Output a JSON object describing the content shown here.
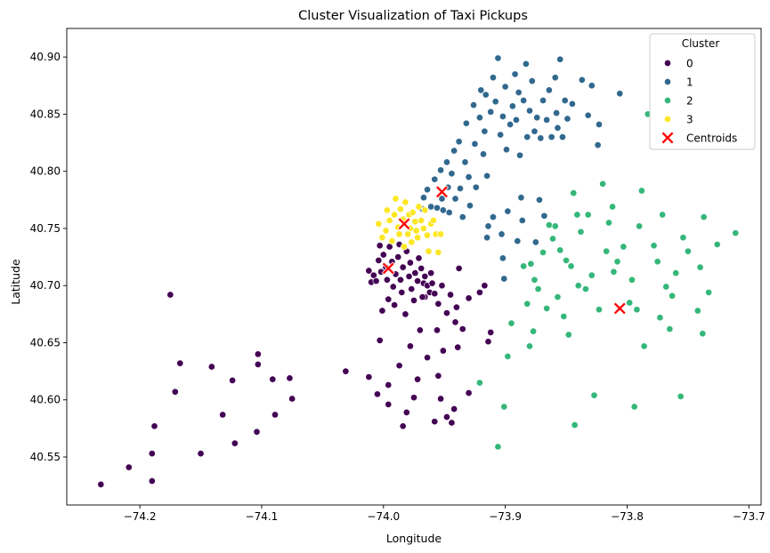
{
  "chart_data": {
    "type": "scatter",
    "title": "Cluster Visualization of Taxi Pickups",
    "xlabel": "Longitude",
    "ylabel": "Latitude",
    "xlim": [
      -74.26,
      -73.69
    ],
    "ylim": [
      40.508,
      40.925
    ],
    "xticks": [
      -74.2,
      -74.1,
      -74.0,
      -73.9,
      -73.8,
      -73.7
    ],
    "xtick_labels": [
      "−74.2",
      "−74.1",
      "−74.0",
      "−73.9",
      "−73.8",
      "−73.7"
    ],
    "yticks": [
      40.55,
      40.6,
      40.65,
      40.7,
      40.75,
      40.8,
      40.85,
      40.9
    ],
    "ytick_labels": [
      "40.55",
      "40.60",
      "40.65",
      "40.70",
      "40.75",
      "40.80",
      "40.85",
      "40.90"
    ],
    "grid": false,
    "legend": {
      "title": "Cluster",
      "position": "top-right"
    },
    "series": [
      {
        "name": "0",
        "color": "#440154",
        "marker": "circle",
        "points": [
          [
            -74.232,
            40.526
          ],
          [
            -74.209,
            40.541
          ],
          [
            -74.19,
            40.529
          ],
          [
            -74.19,
            40.553
          ],
          [
            -74.188,
            40.577
          ],
          [
            -74.175,
            40.692
          ],
          [
            -74.171,
            40.607
          ],
          [
            -74.167,
            40.632
          ],
          [
            -74.15,
            40.553
          ],
          [
            -74.141,
            40.629
          ],
          [
            -74.132,
            40.587
          ],
          [
            -74.124,
            40.617
          ],
          [
            -74.122,
            40.562
          ],
          [
            -74.104,
            40.572
          ],
          [
            -74.103,
            40.631
          ],
          [
            -74.103,
            40.64
          ],
          [
            -74.091,
            40.618
          ],
          [
            -74.089,
            40.587
          ],
          [
            -74.077,
            40.619
          ],
          [
            -74.075,
            40.601
          ],
          [
            -74.031,
            40.625
          ],
          [
            -74.012,
            40.62
          ],
          [
            -74.005,
            40.605
          ],
          [
            -74.003,
            40.652
          ],
          [
            -74.001,
            40.678
          ],
          [
            -73.996,
            40.596
          ],
          [
            -73.996,
            40.613
          ],
          [
            -73.991,
            40.683
          ],
          [
            -73.987,
            40.63
          ],
          [
            -73.984,
            40.577
          ],
          [
            -73.981,
            40.589
          ],
          [
            -73.978,
            40.647
          ],
          [
            -73.975,
            40.602
          ],
          [
            -73.972,
            40.618
          ],
          [
            -73.97,
            40.661
          ],
          [
            -73.966,
            40.69
          ],
          [
            -73.964,
            40.637
          ],
          [
            -73.961,
            40.711
          ],
          [
            -73.958,
            40.581
          ],
          [
            -73.956,
            40.661
          ],
          [
            -73.955,
            40.621
          ],
          [
            -73.953,
            40.601
          ],
          [
            -73.951,
            40.643
          ],
          [
            -73.948,
            40.585
          ],
          [
            -73.944,
            40.58
          ],
          [
            -73.942,
            40.592
          ],
          [
            -73.94,
            40.681
          ],
          [
            -73.939,
            40.646
          ],
          [
            -73.938,
            40.715
          ],
          [
            -73.935,
            40.662
          ],
          [
            -73.93,
            40.606
          ],
          [
            -73.93,
            40.689
          ],
          [
            -73.921,
            40.694
          ],
          [
            -73.917,
            40.7
          ],
          [
            -73.914,
            40.651
          ],
          [
            -73.912,
            40.659
          ],
          [
            -74.012,
            40.713
          ],
          [
            -74.01,
            40.703
          ],
          [
            -74.008,
            40.709
          ],
          [
            -74.006,
            40.704
          ],
          [
            -74.004,
            40.722
          ],
          [
            -74.003,
            40.735
          ],
          [
            -74.002,
            40.712
          ],
          [
            -74.0,
            40.727
          ],
          [
            -73.998,
            40.716
          ],
          [
            -73.997,
            40.705
          ],
          [
            -73.996,
            40.688
          ],
          [
            -73.995,
            40.734
          ],
          [
            -73.993,
            40.721
          ],
          [
            -73.992,
            40.699
          ],
          [
            -73.99,
            40.71
          ],
          [
            -73.988,
            40.725
          ],
          [
            -73.987,
            40.736
          ],
          [
            -73.986,
            40.705
          ],
          [
            -73.985,
            40.694
          ],
          [
            -73.984,
            40.716
          ],
          [
            -73.982,
            40.675
          ],
          [
            -73.981,
            40.73
          ],
          [
            -73.979,
            40.708
          ],
          [
            -73.978,
            40.72
          ],
          [
            -73.977,
            40.697
          ],
          [
            -73.975,
            40.687
          ],
          [
            -73.974,
            40.711
          ],
          [
            -73.972,
            40.704
          ],
          [
            -73.971,
            40.724
          ],
          [
            -73.969,
            40.715
          ],
          [
            -73.968,
            40.69
          ],
          [
            -73.967,
            40.702
          ],
          [
            -73.966,
            40.708
          ],
          [
            -73.964,
            40.7
          ],
          [
            -73.962,
            40.694
          ],
          [
            -73.96,
            40.702
          ],
          [
            -73.958,
            40.693
          ],
          [
            -73.955,
            40.684
          ],
          [
            -73.952,
            40.7
          ],
          [
            -73.948,
            40.676
          ],
          [
            -73.945,
            40.692
          ],
          [
            -73.941,
            40.668
          ]
        ]
      },
      {
        "name": "1",
        "color": "#31688e",
        "marker": "circle",
        "points": [
          [
            -73.968,
            40.767
          ],
          [
            -73.967,
            40.777
          ],
          [
            -73.964,
            40.784
          ],
          [
            -73.961,
            40.769
          ],
          [
            -73.958,
            40.793
          ],
          [
            -73.956,
            40.768
          ],
          [
            -73.953,
            40.801
          ],
          [
            -73.952,
            40.776
          ],
          [
            -73.951,
            40.766
          ],
          [
            -73.948,
            40.808
          ],
          [
            -73.947,
            40.786
          ],
          [
            -73.946,
            40.764
          ],
          [
            -73.944,
            40.798
          ],
          [
            -73.942,
            40.818
          ],
          [
            -73.941,
            40.776
          ],
          [
            -73.938,
            40.826
          ],
          [
            -73.937,
            40.785
          ],
          [
            -73.935,
            40.76
          ],
          [
            -73.933,
            40.808
          ],
          [
            -73.932,
            40.842
          ],
          [
            -73.93,
            40.795
          ],
          [
            -73.929,
            40.77
          ],
          [
            -73.926,
            40.858
          ],
          [
            -73.925,
            40.824
          ],
          [
            -73.924,
            40.786
          ],
          [
            -73.921,
            40.847
          ],
          [
            -73.92,
            40.871
          ],
          [
            -73.918,
            40.815
          ],
          [
            -73.917,
            40.835
          ],
          [
            -73.916,
            40.867
          ],
          [
            -73.915,
            40.796
          ],
          [
            -73.914,
            40.752
          ],
          [
            -73.912,
            40.852
          ],
          [
            -73.91,
            40.882
          ],
          [
            -73.908,
            40.861
          ],
          [
            -73.906,
            40.899
          ],
          [
            -73.904,
            40.832
          ],
          [
            -73.903,
            40.745
          ],
          [
            -73.902,
            40.848
          ],
          [
            -73.9,
            40.874
          ],
          [
            -73.899,
            40.819
          ],
          [
            -73.898,
            40.765
          ],
          [
            -73.896,
            40.841
          ],
          [
            -73.894,
            40.857
          ],
          [
            -73.892,
            40.885
          ],
          [
            -73.891,
            40.845
          ],
          [
            -73.889,
            40.869
          ],
          [
            -73.888,
            40.814
          ],
          [
            -73.887,
            40.777
          ],
          [
            -73.886,
            40.757
          ],
          [
            -73.885,
            40.862
          ],
          [
            -73.883,
            40.894
          ],
          [
            -73.882,
            40.83
          ],
          [
            -73.88,
            40.853
          ],
          [
            -73.878,
            40.879
          ],
          [
            -73.876,
            40.835
          ],
          [
            -73.874,
            40.847
          ],
          [
            -73.872,
            40.775
          ],
          [
            -73.871,
            40.829
          ],
          [
            -73.869,
            40.862
          ],
          [
            -73.868,
            40.761
          ],
          [
            -73.866,
            40.845
          ],
          [
            -73.864,
            40.871
          ],
          [
            -73.862,
            40.83
          ],
          [
            -73.859,
            40.882
          ],
          [
            -73.858,
            40.851
          ],
          [
            -73.857,
            40.838
          ],
          [
            -73.855,
            40.898
          ],
          [
            -73.853,
            40.83
          ],
          [
            -73.851,
            40.862
          ],
          [
            -73.849,
            40.846
          ],
          [
            -73.845,
            40.859
          ],
          [
            -73.837,
            40.88
          ],
          [
            -73.832,
            40.849
          ],
          [
            -73.829,
            40.875
          ],
          [
            -73.823,
            40.841
          ],
          [
            -73.824,
            40.823
          ],
          [
            -73.806,
            40.868
          ],
          [
            -73.902,
            40.724
          ],
          [
            -73.901,
            40.706
          ],
          [
            -73.915,
            40.742
          ],
          [
            -73.91,
            40.76
          ],
          [
            -73.89,
            40.739
          ],
          [
            -73.875,
            40.738
          ]
        ]
      },
      {
        "name": "2",
        "color": "#35b779",
        "marker": "circle",
        "points": [
          [
            -73.906,
            40.559
          ],
          [
            -73.901,
            40.594
          ],
          [
            -73.898,
            40.638
          ],
          [
            -73.895,
            40.667
          ],
          [
            -73.885,
            40.717
          ],
          [
            -73.882,
            40.684
          ],
          [
            -73.88,
            40.647
          ],
          [
            -73.877,
            40.66
          ],
          [
            -73.876,
            40.705
          ],
          [
            -73.873,
            40.697
          ],
          [
            -73.869,
            40.729
          ],
          [
            -73.866,
            40.68
          ],
          [
            -73.864,
            40.753
          ],
          [
            -73.861,
            40.741
          ],
          [
            -73.859,
            40.752
          ],
          [
            -73.857,
            40.69
          ],
          [
            -73.855,
            40.731
          ],
          [
            -73.852,
            40.673
          ],
          [
            -73.85,
            40.722
          ],
          [
            -73.848,
            40.657
          ],
          [
            -73.846,
            40.717
          ],
          [
            -73.844,
            40.781
          ],
          [
            -73.843,
            40.578
          ],
          [
            -73.841,
            40.762
          ],
          [
            -73.838,
            40.747
          ],
          [
            -73.834,
            40.697
          ],
          [
            -73.832,
            40.762
          ],
          [
            -73.829,
            40.709
          ],
          [
            -73.827,
            40.604
          ],
          [
            -73.823,
            40.679
          ],
          [
            -73.82,
            40.789
          ],
          [
            -73.817,
            40.73
          ],
          [
            -73.815,
            40.755
          ],
          [
            -73.812,
            40.769
          ],
          [
            -73.811,
            40.712
          ],
          [
            -73.808,
            40.721
          ],
          [
            -73.803,
            40.734
          ],
          [
            -73.798,
            40.685
          ],
          [
            -73.796,
            40.705
          ],
          [
            -73.794,
            40.594
          ],
          [
            -73.792,
            40.679
          ],
          [
            -73.79,
            40.752
          ],
          [
            -73.788,
            40.783
          ],
          [
            -73.786,
            40.647
          ],
          [
            -73.783,
            40.85
          ],
          [
            -73.778,
            40.735
          ],
          [
            -73.775,
            40.721
          ],
          [
            -73.773,
            40.672
          ],
          [
            -73.771,
            40.762
          ],
          [
            -73.768,
            40.699
          ],
          [
            -73.765,
            40.662
          ],
          [
            -73.763,
            40.691
          ],
          [
            -73.76,
            40.711
          ],
          [
            -73.756,
            40.603
          ],
          [
            -73.754,
            40.742
          ],
          [
            -73.75,
            40.73
          ],
          [
            -73.742,
            40.678
          ],
          [
            -73.74,
            40.716
          ],
          [
            -73.738,
            40.658
          ],
          [
            -73.737,
            40.76
          ],
          [
            -73.733,
            40.694
          ],
          [
            -73.726,
            40.736
          ],
          [
            -73.711,
            40.746
          ],
          [
            -73.879,
            40.719
          ],
          [
            -73.921,
            40.615
          ],
          [
            -73.84,
            40.7
          ]
        ]
      },
      {
        "name": "3",
        "color": "#fde725",
        "marker": "circle",
        "points": [
          [
            -74.004,
            40.754
          ],
          [
            -74.001,
            40.742
          ],
          [
            -73.998,
            40.748
          ],
          [
            -73.997,
            40.766
          ],
          [
            -73.995,
            40.757
          ],
          [
            -73.993,
            40.739
          ],
          [
            -73.991,
            40.762
          ],
          [
            -73.99,
            40.776
          ],
          [
            -73.988,
            40.751
          ],
          [
            -73.987,
            40.745
          ],
          [
            -73.986,
            40.767
          ],
          [
            -73.984,
            40.758
          ],
          [
            -73.983,
            40.734
          ],
          [
            -73.982,
            40.773
          ],
          [
            -73.98,
            40.745
          ],
          [
            -73.979,
            40.762
          ],
          [
            -73.978,
            40.75
          ],
          [
            -73.977,
            40.738
          ],
          [
            -73.976,
            40.764
          ],
          [
            -73.974,
            40.756
          ],
          [
            -73.973,
            40.748
          ],
          [
            -73.972,
            40.742
          ],
          [
            -73.971,
            40.769
          ],
          [
            -73.969,
            40.757
          ],
          [
            -73.967,
            40.75
          ],
          [
            -73.966,
            40.766
          ],
          [
            -73.964,
            40.744
          ],
          [
            -73.963,
            40.73
          ],
          [
            -73.961,
            40.754
          ],
          [
            -73.959,
            40.757
          ],
          [
            -73.957,
            40.745
          ],
          [
            -73.955,
            40.729
          ],
          [
            -73.953,
            40.745
          ]
        ]
      },
      {
        "name": "Centroids",
        "color": "#ff0000",
        "marker": "x",
        "points": [
          [
            -73.996,
            40.715
          ],
          [
            -73.983,
            40.754
          ],
          [
            -73.952,
            40.782
          ],
          [
            -73.806,
            40.68
          ]
        ]
      }
    ]
  }
}
